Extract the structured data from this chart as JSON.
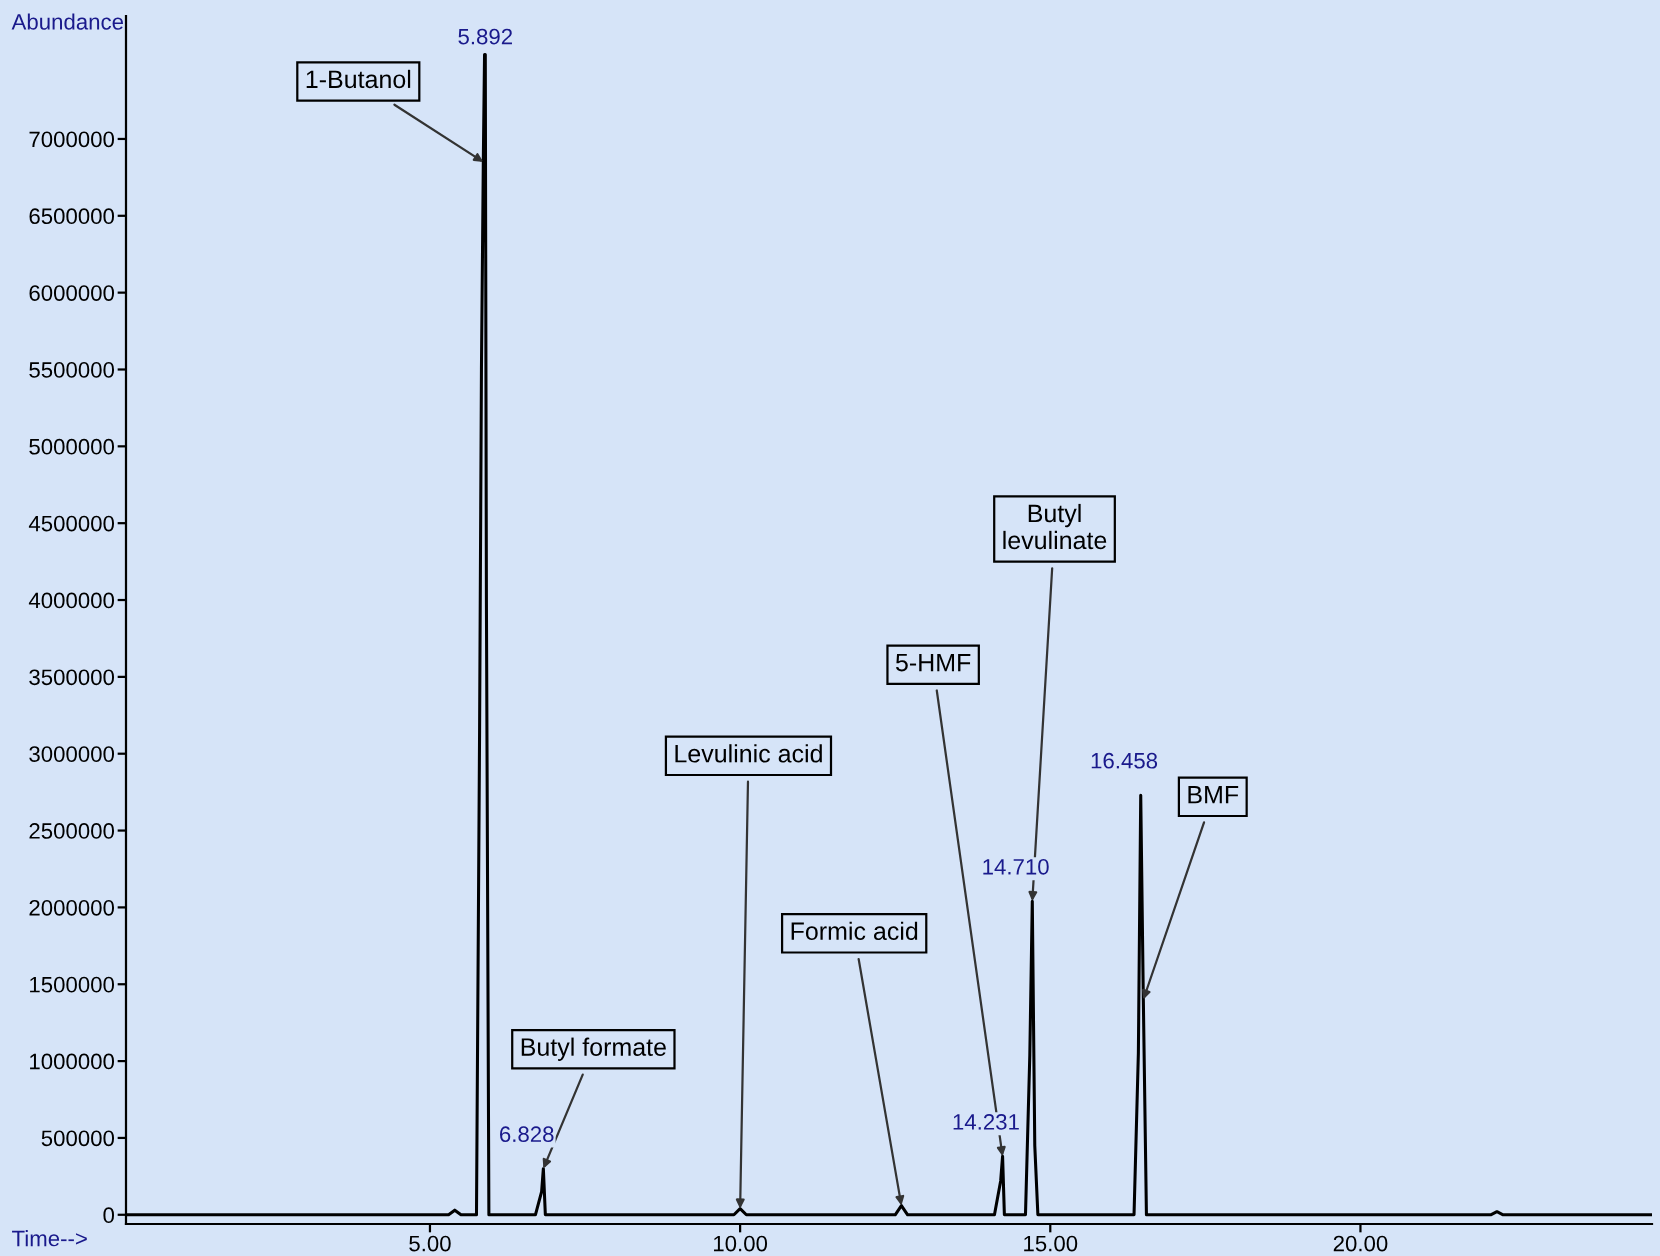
{
  "chart_data": {
    "type": "line",
    "xlabel": "Time-->",
    "ylabel": "Abundance",
    "x": [
      0.1,
      5.3,
      5.4,
      5.5,
      5.75,
      5.8,
      5.83,
      5.86,
      5.88,
      5.892,
      5.91,
      5.95,
      6.7,
      6.8,
      6.828,
      6.86,
      9.9,
      10.0,
      10.1,
      12.5,
      12.6,
      12.7,
      14.1,
      14.2,
      14.231,
      14.26,
      14.6,
      14.67,
      14.71,
      14.75,
      14.8,
      16.35,
      16.42,
      16.458,
      16.5,
      16.55,
      22.1,
      22.2,
      22.3,
      24.7
    ],
    "series": [
      {
        "color": "#000000",
        "values": [
          0,
          0,
          30000,
          0,
          0,
          3150000,
          5500000,
          6850000,
          7550000,
          7550000,
          4000000,
          0,
          0,
          150000,
          300000,
          0,
          0,
          40000,
          0,
          0,
          60000,
          0,
          0,
          220000,
          380000,
          0,
          0,
          1040000,
          2040000,
          450000,
          0,
          0,
          1050000,
          2730000,
          1400000,
          0,
          0,
          20000,
          0,
          0
        ]
      }
    ],
    "xlim": [
      0.1,
      24.7
    ],
    "ylim": [
      -60000,
      7800000
    ],
    "xticks": [
      {
        "value": 5,
        "label": "5.00"
      },
      {
        "value": 10,
        "label": "10.00"
      },
      {
        "value": 15,
        "label": "15.00"
      },
      {
        "value": 20,
        "label": "20.00"
      }
    ],
    "yticks": [
      0,
      500000,
      1000000,
      1500000,
      2000000,
      2500000,
      3000000,
      3500000,
      4000000,
      4500000,
      5000000,
      5500000,
      6000000,
      6500000,
      7000000
    ],
    "grid": false,
    "legend": false,
    "marker": "none",
    "line_style": "solid",
    "annotations": [
      {
        "text": "5.892",
        "x": 5.892,
        "y": 7550000
      },
      {
        "text": "6.828",
        "x": 6.828,
        "y": 300000
      },
      {
        "text": "14.231",
        "x": 14.231,
        "y": 380000
      },
      {
        "text": "14.710",
        "x": 14.71,
        "y": 2040000
      },
      {
        "text": "16.458",
        "x": 16.458,
        "y": 2730000
      },
      {
        "text": "1-Butanol",
        "x": 5.86,
        "y": 6850000
      },
      {
        "text": "Butyl formate",
        "x": 6.828,
        "y": 300000
      },
      {
        "text": "Levulinic acid",
        "x": 10.0,
        "y": 40000
      },
      {
        "text": "Formic acid",
        "x": 12.6,
        "y": 60000
      },
      {
        "text": "5-HMF",
        "x": 14.231,
        "y": 380000
      },
      {
        "text": "Butyl\nlevulinate",
        "x": 14.71,
        "y": 2040000
      },
      {
        "text": "BMF",
        "x": 16.5,
        "y": 1400000
      }
    ]
  }
}
